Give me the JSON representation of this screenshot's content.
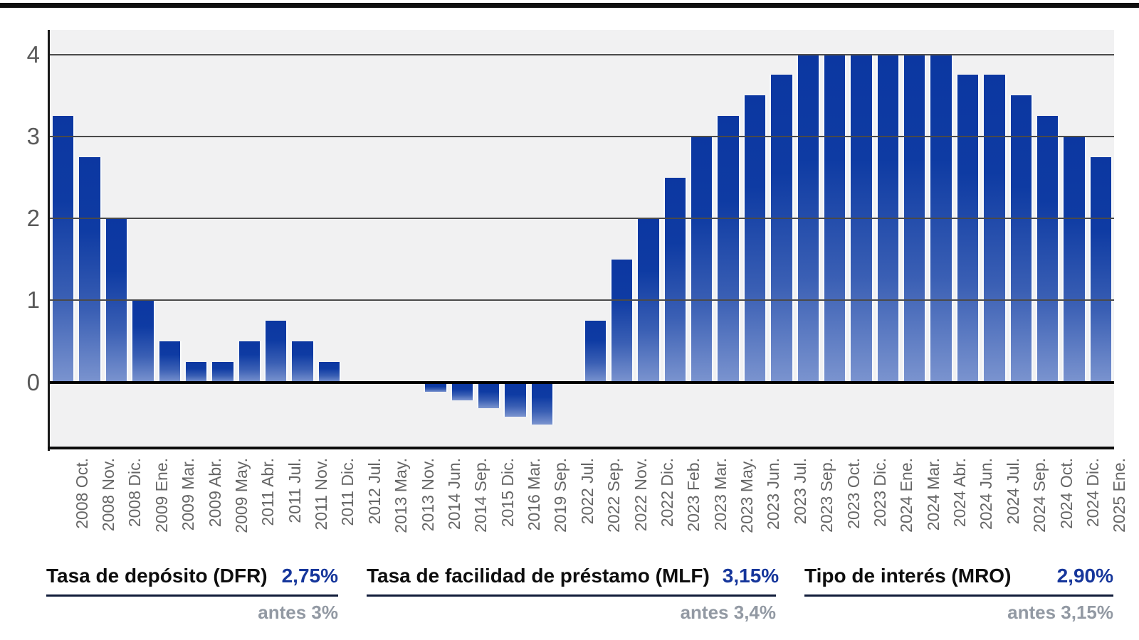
{
  "chart_data": {
    "type": "bar",
    "title": "",
    "xlabel": "",
    "ylabel": "",
    "unit": "%",
    "categories": [
      "2008 Oct.",
      "2008 Nov.",
      "2008 Dic.",
      "2009 Ene.",
      "2009 Mar.",
      "2009 Abr.",
      "2009 May.",
      "2011 Abr.",
      "2011 Jul.",
      "2011 Nov.",
      "2011 Dic.",
      "2012 Jul.",
      "2013 May.",
      "2013 Nov.",
      "2014 Jun.",
      "2014 Sep.",
      "2015 Dic.",
      "2016 Mar.",
      "2019 Sep.",
      "2022 Jul.",
      "2022 Sep.",
      "2022 Nov.",
      "2022 Dic.",
      "2023 Feb.",
      "2023 Mar.",
      "2023 May.",
      "2023 Jun.",
      "2023 Jul.",
      "2023 Sep.",
      "2023 Oct.",
      "2023 Dic.",
      "2024 Ene.",
      "2024 Mar.",
      "2024 Abr.",
      "2024 Jun.",
      "2024 Jul.",
      "2024 Sep.",
      "2024 Oct.",
      "2024 Dic.",
      "2025 Ene."
    ],
    "values": [
      3.25,
      2.75,
      2,
      1,
      0.5,
      0.25,
      0.25,
      0.5,
      0.75,
      0.5,
      0.25,
      0,
      0,
      0,
      -0.1,
      -0.2,
      -0.3,
      -0.4,
      -0.5,
      0,
      0.75,
      1.5,
      2,
      2.5,
      3,
      3.25,
      3.5,
      3.75,
      4,
      4,
      4,
      4,
      4,
      4,
      3.75,
      3.75,
      3.5,
      3.25,
      3,
      2.75
    ],
    "yticks": [
      4,
      3,
      2,
      1,
      0
    ],
    "ylim": [
      -0.8,
      4.3
    ],
    "grid": true,
    "legend_position": "none",
    "colors": {
      "bar_gradient_top": "#0c37a1",
      "bar_gradient_bottom": "#7b94cf",
      "plot_background": "#f1f1f2",
      "gridline": "#4a4a4a",
      "zero_line": "#000000",
      "y_tick_label": "#595959",
      "x_tick_label": "#666666"
    }
  },
  "legend": {
    "items": [
      {
        "label": "Tasa de depósito (DFR)",
        "value": "2,75%",
        "previous": "antes 3%"
      },
      {
        "label": "Tasa de facilidad de préstamo (MLF)",
        "value": "3,15%",
        "previous": "antes 3,4%"
      },
      {
        "label": "Tipo de interés (MRO)",
        "value": "2,90%",
        "previous": "antes 3,15%"
      }
    ],
    "colors": {
      "value": "#16369b",
      "previous": "#9299a3",
      "underline": "#111c3a"
    }
  }
}
